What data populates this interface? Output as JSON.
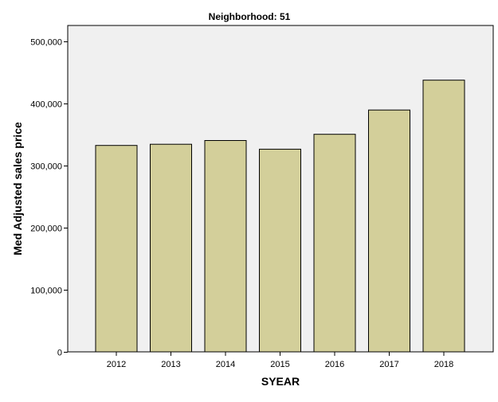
{
  "chart_data": {
    "type": "bar",
    "title": "Neighborhood: 51",
    "xlabel": "SYEAR",
    "ylabel": "Med Adjusted sales price",
    "categories": [
      "2012",
      "2013",
      "2014",
      "2015",
      "2016",
      "2017",
      "2018"
    ],
    "values": [
      332000,
      334000,
      340000,
      326000,
      350000,
      389000,
      437000
    ],
    "ylim": [
      0,
      525000
    ],
    "yticks": [
      0,
      100000,
      200000,
      300000,
      400000,
      500000
    ],
    "ytick_labels": [
      "0",
      "100,000",
      "200,000",
      "300,000",
      "400,000",
      "500,000"
    ],
    "grid": false,
    "legend": "none",
    "colors": {
      "bar_fill": "#d3cf9a",
      "bar_stroke": "#000000",
      "plot_background": "#f0f0f0",
      "text": "#000000"
    }
  }
}
